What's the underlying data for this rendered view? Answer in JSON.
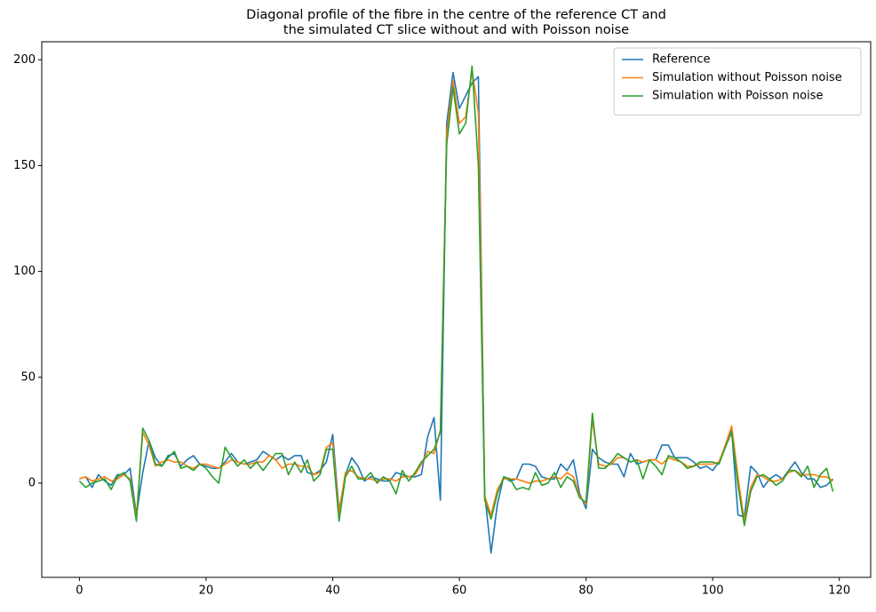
{
  "chart_data": {
    "type": "line",
    "title": [
      "Diagonal profile of the fibre in the centre of the reference CT and",
      "the simulated CT slice without and with Poisson noise"
    ],
    "x": [
      0,
      1,
      2,
      3,
      4,
      5,
      6,
      7,
      8,
      9,
      10,
      11,
      12,
      13,
      14,
      15,
      16,
      17,
      18,
      19,
      20,
      21,
      22,
      23,
      24,
      25,
      26,
      27,
      28,
      29,
      30,
      31,
      32,
      33,
      34,
      35,
      36,
      37,
      38,
      39,
      40,
      41,
      42,
      43,
      44,
      45,
      46,
      47,
      48,
      49,
      50,
      51,
      52,
      53,
      54,
      55,
      56,
      57,
      58,
      59,
      60,
      61,
      62,
      63,
      64,
      65,
      66,
      67,
      68,
      69,
      70,
      71,
      72,
      73,
      74,
      75,
      76,
      77,
      78,
      79,
      80,
      81,
      82,
      83,
      84,
      85,
      86,
      87,
      88,
      89,
      90,
      91,
      92,
      93,
      94,
      95,
      96,
      97,
      98,
      99,
      100,
      101,
      102,
      103,
      104,
      105,
      106,
      107,
      108,
      109,
      110,
      111,
      112,
      113,
      114,
      115,
      116,
      117,
      118,
      119
    ],
    "series": [
      {
        "name": "Reference",
        "color": "#1f77b4",
        "values": [
          2,
          3,
          -2,
          4,
          1,
          -1,
          4,
          4,
          7,
          -15,
          5,
          20,
          12,
          8,
          13,
          14,
          8,
          11,
          13,
          9,
          8,
          7,
          7,
          10,
          14,
          10,
          9,
          10,
          11,
          15,
          13,
          11,
          13,
          11,
          13,
          13,
          5,
          4,
          6,
          10,
          23,
          -13,
          4,
          12,
          8,
          1,
          3,
          2,
          1,
          1,
          5,
          4,
          3,
          3,
          4,
          22,
          31,
          -8,
          170,
          194,
          177,
          183,
          189,
          192,
          -5,
          -33,
          -10,
          3,
          1,
          2,
          9,
          9,
          8,
          3,
          2,
          2,
          9,
          6,
          11,
          -5,
          -12,
          16,
          12,
          10,
          9,
          9,
          3,
          14,
          9,
          10,
          11,
          11,
          18,
          18,
          12,
          12,
          12,
          10,
          7,
          8,
          6,
          10,
          17,
          25,
          -15,
          -16,
          8,
          5,
          -2,
          2,
          4,
          2,
          6,
          10,
          5,
          2,
          2,
          -2,
          -1,
          2
        ]
      },
      {
        "name": "Simulation without Poisson noise",
        "color": "#ff7f0e",
        "values": [
          2,
          3,
          1,
          2,
          3,
          1,
          2,
          4,
          2,
          -16,
          24,
          18,
          8,
          10,
          11,
          10,
          10,
          8,
          7,
          9,
          9,
          8,
          7,
          9,
          11,
          10,
          9,
          9,
          10,
          10,
          13,
          11,
          7,
          9,
          9,
          8,
          8,
          4,
          5,
          17,
          19,
          -14,
          5,
          6,
          3,
          2,
          2,
          1,
          2,
          2,
          1,
          3,
          3,
          4,
          9,
          15,
          14,
          25,
          165,
          190,
          170,
          173,
          195,
          175,
          -6,
          -15,
          -3,
          2,
          2,
          2,
          1,
          0,
          1,
          1,
          2,
          3,
          2,
          5,
          3,
          -6,
          -10,
          30,
          9,
          8,
          9,
          12,
          12,
          10,
          11,
          10,
          11,
          11,
          9,
          12,
          11,
          10,
          8,
          8,
          9,
          9,
          9,
          10,
          18,
          27,
          3,
          -18,
          -2,
          4,
          3,
          1,
          1,
          2,
          5,
          6,
          4,
          4,
          4,
          3,
          3,
          1
        ]
      },
      {
        "name": "Simulation with Poisson noise",
        "color": "#2ca02c",
        "values": [
          1,
          -2,
          0,
          1,
          2,
          -3,
          3,
          5,
          1,
          -18,
          26,
          20,
          9,
          8,
          12,
          15,
          7,
          8,
          6,
          9,
          7,
          3,
          0,
          17,
          12,
          8,
          11,
          7,
          10,
          6,
          10,
          14,
          14,
          4,
          10,
          5,
          11,
          1,
          4,
          16,
          16,
          -18,
          3,
          8,
          2,
          2,
          5,
          0,
          3,
          1,
          -5,
          6,
          1,
          5,
          10,
          13,
          16,
          24,
          160,
          187,
          165,
          170,
          197,
          150,
          -8,
          -17,
          -5,
          3,
          2,
          -3,
          -2,
          -3,
          5,
          -1,
          0,
          5,
          -2,
          3,
          1,
          -7,
          -9,
          33,
          7,
          7,
          10,
          14,
          12,
          10,
          11,
          2,
          11,
          8,
          4,
          13,
          12,
          10,
          7,
          8,
          10,
          10,
          10,
          9,
          17,
          24,
          -1,
          -20,
          -4,
          3,
          4,
          2,
          -1,
          1,
          6,
          6,
          3,
          8,
          -2,
          4,
          7,
          -4
        ]
      }
    ],
    "xlim": [
      -5.95,
      124.95
    ],
    "xticks": [
      0,
      20,
      40,
      60,
      80,
      100,
      120
    ],
    "ylim": [
      -44.5,
      208.5
    ],
    "yticks": [
      0,
      50,
      100,
      150,
      200
    ],
    "grid": false,
    "legend": "upper right"
  }
}
